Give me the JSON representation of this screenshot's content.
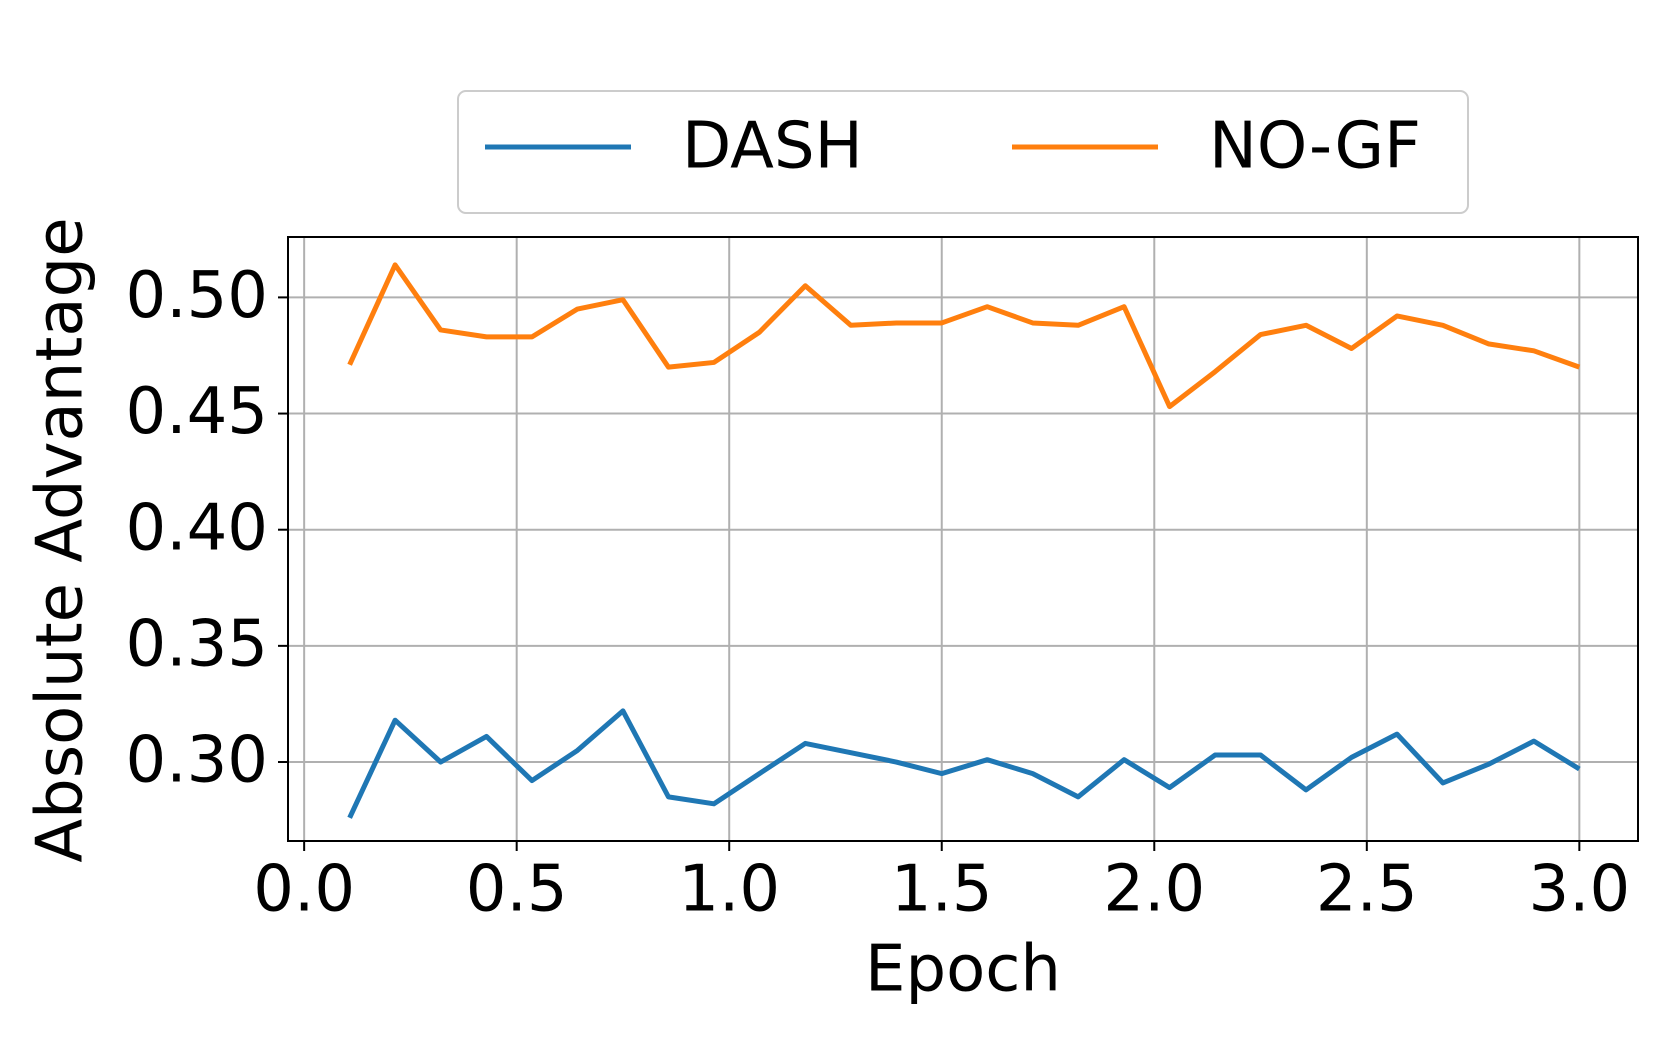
{
  "chart_data": {
    "type": "line",
    "x_label": "Epoch",
    "y_label": "Absolute Advantage",
    "x": [
      0.107,
      0.214,
      0.321,
      0.429,
      0.536,
      0.643,
      0.75,
      0.857,
      0.964,
      1.071,
      1.179,
      1.286,
      1.393,
      1.5,
      1.607,
      1.714,
      1.821,
      1.929,
      2.036,
      2.143,
      2.25,
      2.357,
      2.464,
      2.571,
      2.679,
      2.786,
      2.893,
      3.0
    ],
    "series": [
      {
        "name": "DASH",
        "color": "#1f77b4",
        "values": [
          0.276,
          0.318,
          0.3,
          0.311,
          0.292,
          0.305,
          0.322,
          0.285,
          0.282,
          0.295,
          0.308,
          0.304,
          0.3,
          0.295,
          0.301,
          0.295,
          0.285,
          0.301,
          0.289,
          0.303,
          0.303,
          0.288,
          0.302,
          0.312,
          0.291,
          0.299,
          0.309,
          0.297
        ]
      },
      {
        "name": "NO-GF",
        "color": "#ff7f0e",
        "values": [
          0.471,
          0.514,
          0.486,
          0.483,
          0.483,
          0.495,
          0.499,
          0.47,
          0.472,
          0.485,
          0.505,
          0.488,
          0.489,
          0.489,
          0.496,
          0.489,
          0.488,
          0.496,
          0.453,
          0.468,
          0.484,
          0.488,
          0.478,
          0.492,
          0.488,
          0.48,
          0.477,
          0.47
        ]
      }
    ],
    "xlim": [
      -0.038,
      3.138
    ],
    "ylim": [
      0.266,
      0.526
    ],
    "xticks": [
      {
        "value": 0,
        "label": "0.0"
      },
      0.5,
      {
        "value": 1,
        "label": "1.0"
      },
      1.5,
      {
        "value": 2,
        "label": "2.0"
      },
      2.5,
      {
        "value": 3,
        "label": "3.0"
      }
    ],
    "yticks": [
      {
        "value": 0.3,
        "label": "0.30"
      },
      {
        "value": 0.35,
        "label": "0.35"
      },
      {
        "value": 0.4,
        "label": "0.40"
      },
      {
        "value": 0.45,
        "label": "0.45"
      },
      {
        "value": 0.5,
        "label": "0.50"
      }
    ],
    "grid": true,
    "legend": "top"
  }
}
